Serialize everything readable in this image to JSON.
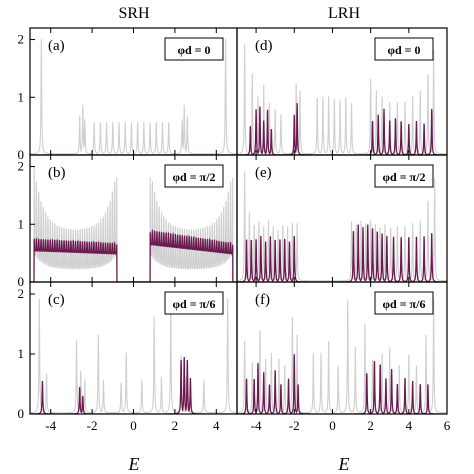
{
  "figure": {
    "column_titles": [
      "SRH",
      "LRH"
    ],
    "xlabel": "E"
  },
  "colors": {
    "light_series": "#cfcfcf",
    "dark_series": "#6b1a4f",
    "frame": "#000000"
  },
  "chart_data": [
    {
      "type": "line",
      "panel": "(a)",
      "column": "SRH",
      "row": 0,
      "annotation": "φd = 0",
      "xlim": [
        -5,
        5
      ],
      "ylim": [
        0,
        2.2
      ],
      "xticks": [
        -4,
        -2,
        0,
        2,
        4
      ],
      "yticks": [
        0,
        1,
        2
      ],
      "light_peaks": [
        [
          -4.45,
          2.0
        ],
        [
          -2.6,
          0.65
        ],
        [
          -2.45,
          0.85
        ],
        [
          -2.35,
          0.6
        ],
        [
          -1.9,
          0.55
        ],
        [
          -1.6,
          0.55
        ],
        [
          -1.3,
          0.55
        ],
        [
          -1.0,
          0.55
        ],
        [
          -0.7,
          0.55
        ],
        [
          -0.4,
          0.55
        ],
        [
          -0.1,
          0.55
        ],
        [
          0.2,
          0.55
        ],
        [
          0.5,
          0.55
        ],
        [
          0.8,
          0.55
        ],
        [
          1.1,
          0.55
        ],
        [
          1.4,
          0.55
        ],
        [
          1.7,
          0.55
        ],
        [
          2.35,
          0.6
        ],
        [
          2.45,
          0.85
        ],
        [
          2.6,
          0.65
        ],
        [
          4.45,
          2.0
        ]
      ],
      "dark_peaks": []
    },
    {
      "type": "line",
      "panel": "(b)",
      "column": "SRH",
      "row": 1,
      "annotation": "φd = π/2",
      "xlim": [
        -5,
        5
      ],
      "ylim": [
        0,
        2.2
      ],
      "xticks": [
        -4,
        -2,
        0,
        2,
        4
      ],
      "yticks": [
        0,
        1,
        2
      ],
      "bands": [
        [
          -4.8,
          -0.8
        ],
        [
          0.8,
          4.8
        ]
      ],
      "light_base": 0.9,
      "light_edge": 2.0,
      "dark_level": 0.75,
      "dark_left_scale": 1.0,
      "dark_right_scale": 1.2
    },
    {
      "type": "line",
      "panel": "(c)",
      "column": "SRH",
      "row": 2,
      "annotation": "φd = π/6",
      "xlim": [
        -5,
        5
      ],
      "ylim": [
        0,
        2.2
      ],
      "xticks": [
        -4,
        -2,
        0,
        2,
        4
      ],
      "yticks": [
        0,
        1,
        2
      ],
      "light_peaks": [
        [
          -4.55,
          1.9
        ],
        [
          -4.2,
          0.65
        ],
        [
          -2.75,
          1.2
        ],
        [
          -2.55,
          0.7
        ],
        [
          -2.35,
          0.55
        ],
        [
          -1.7,
          1.3
        ],
        [
          -1.45,
          0.55
        ],
        [
          -0.6,
          0.5
        ],
        [
          -0.35,
          1.0
        ],
        [
          0.4,
          0.55
        ],
        [
          1.0,
          1.6
        ],
        [
          1.35,
          0.6
        ],
        [
          1.8,
          1.8
        ],
        [
          2.3,
          0.95
        ],
        [
          2.55,
          0.6
        ],
        [
          3.4,
          0.55
        ],
        [
          4.55,
          1.9
        ]
      ],
      "dark_peaks": [
        [
          -4.4,
          0.55
        ],
        [
          -2.6,
          0.45
        ],
        [
          -2.45,
          0.3
        ],
        [
          2.3,
          0.9
        ],
        [
          2.45,
          0.95
        ],
        [
          2.6,
          0.9
        ],
        [
          2.75,
          0.6
        ]
      ]
    },
    {
      "type": "line",
      "panel": "(d)",
      "column": "LRH",
      "row": 0,
      "annotation": "φd = 0",
      "xlim": [
        -5,
        6
      ],
      "ylim": [
        0,
        2.2
      ],
      "xticks": [
        -4,
        -2,
        0,
        2,
        4,
        6
      ],
      "yticks": [],
      "light_peaks": [
        [
          -4.6,
          1.9
        ],
        [
          -4.2,
          1.4
        ],
        [
          -3.9,
          1.0
        ],
        [
          -3.6,
          1.2
        ],
        [
          -3.3,
          0.9
        ],
        [
          -3.0,
          0.8
        ],
        [
          -2.7,
          0.7
        ],
        [
          -1.9,
          1.25
        ],
        [
          -1.7,
          1.1
        ],
        [
          -0.8,
          1.0
        ],
        [
          -0.5,
          1.0
        ],
        [
          -0.2,
          1.0
        ],
        [
          0.1,
          0.95
        ],
        [
          0.4,
          0.95
        ],
        [
          0.7,
          1.0
        ],
        [
          1.0,
          0.9
        ],
        [
          2.0,
          1.3
        ],
        [
          2.3,
          1.1
        ],
        [
          2.6,
          1.0
        ],
        [
          3.0,
          0.9
        ],
        [
          3.4,
          0.9
        ],
        [
          3.8,
          0.9
        ],
        [
          4.2,
          1.0
        ],
        [
          4.6,
          1.1
        ],
        [
          5.0,
          1.4
        ],
        [
          5.3,
          1.8
        ]
      ],
      "dark_peaks": [
        [
          -4.3,
          0.5
        ],
        [
          -4.0,
          0.8
        ],
        [
          -3.8,
          0.85
        ],
        [
          -3.6,
          0.6
        ],
        [
          -3.4,
          0.8
        ],
        [
          -3.2,
          0.45
        ],
        [
          -2.0,
          0.7
        ],
        [
          -1.85,
          0.9
        ],
        [
          2.1,
          0.6
        ],
        [
          2.4,
          0.7
        ],
        [
          2.7,
          0.8
        ],
        [
          3.0,
          0.6
        ],
        [
          3.3,
          0.65
        ],
        [
          3.6,
          0.6
        ],
        [
          4.0,
          0.55
        ],
        [
          4.4,
          0.6
        ],
        [
          4.8,
          0.55
        ],
        [
          5.2,
          0.8
        ]
      ]
    },
    {
      "type": "line",
      "panel": "(e)",
      "column": "LRH",
      "row": 1,
      "annotation": "φd = π/2",
      "xlim": [
        -5,
        6
      ],
      "ylim": [
        0,
        2.2
      ],
      "xticks": [
        -4,
        -2,
        0,
        2,
        4,
        6
      ],
      "yticks": [],
      "light_peaks": [
        [
          -4.6,
          1.9
        ],
        [
          -4.35,
          1.2
        ],
        [
          -4.1,
          1.0
        ],
        [
          -3.85,
          1.05
        ],
        [
          -3.6,
          0.95
        ],
        [
          -3.35,
          1.05
        ],
        [
          -3.1,
          0.95
        ],
        [
          -2.85,
          0.9
        ],
        [
          -2.6,
          1.0
        ],
        [
          -2.35,
          0.95
        ],
        [
          -2.1,
          1.0
        ],
        [
          -1.85,
          1.0
        ],
        [
          1.0,
          1.05
        ],
        [
          1.25,
          1.0
        ],
        [
          1.5,
          1.05
        ],
        [
          1.75,
          1.0
        ],
        [
          2.0,
          1.05
        ],
        [
          2.25,
          1.0
        ],
        [
          2.5,
          0.95
        ],
        [
          2.75,
          1.0
        ],
        [
          3.05,
          0.95
        ],
        [
          3.4,
          0.95
        ],
        [
          3.8,
          0.95
        ],
        [
          4.2,
          1.0
        ],
        [
          4.6,
          1.05
        ],
        [
          5.0,
          1.4
        ],
        [
          5.35,
          1.8
        ]
      ],
      "dark_peaks": [
        [
          -4.5,
          0.75
        ],
        [
          -4.25,
          0.75
        ],
        [
          -4.0,
          0.75
        ],
        [
          -3.75,
          0.8
        ],
        [
          -3.5,
          0.7
        ],
        [
          -3.25,
          0.8
        ],
        [
          -3.0,
          0.75
        ],
        [
          -2.75,
          0.75
        ],
        [
          -2.5,
          0.75
        ],
        [
          -2.25,
          0.7
        ],
        [
          -2.0,
          0.8
        ],
        [
          1.1,
          0.9
        ],
        [
          1.35,
          1.0
        ],
        [
          1.6,
          0.95
        ],
        [
          1.85,
          1.0
        ],
        [
          2.1,
          0.95
        ],
        [
          2.35,
          0.9
        ],
        [
          2.6,
          0.85
        ],
        [
          2.85,
          0.8
        ],
        [
          3.2,
          0.8
        ],
        [
          3.6,
          0.8
        ],
        [
          4.0,
          0.8
        ],
        [
          4.4,
          0.8
        ],
        [
          4.8,
          0.8
        ],
        [
          5.2,
          0.85
        ]
      ]
    },
    {
      "type": "line",
      "panel": "(f)",
      "column": "LRH",
      "row": 2,
      "annotation": "φd = π/6",
      "xlim": [
        -5,
        6
      ],
      "ylim": [
        0,
        2.2
      ],
      "xticks": [
        -4,
        -2,
        0,
        2,
        4,
        6
      ],
      "yticks": [],
      "light_peaks": [
        [
          -4.6,
          1.2
        ],
        [
          -4.2,
          0.85
        ],
        [
          -3.8,
          1.4
        ],
        [
          -3.5,
          0.9
        ],
        [
          -3.2,
          1.0
        ],
        [
          -2.8,
          0.9
        ],
        [
          -2.5,
          0.8
        ],
        [
          -2.1,
          1.6
        ],
        [
          -1.85,
          1.3
        ],
        [
          -1.0,
          1.0
        ],
        [
          -0.6,
          1.0
        ],
        [
          -0.2,
          1.2
        ],
        [
          0.3,
          0.8
        ],
        [
          0.8,
          1.9
        ],
        [
          1.2,
          1.1
        ],
        [
          1.7,
          1.5
        ],
        [
          2.1,
          0.9
        ],
        [
          2.6,
          1.0
        ],
        [
          3.0,
          1.1
        ],
        [
          3.5,
          0.8
        ],
        [
          4.0,
          1.0
        ],
        [
          4.4,
          0.8
        ],
        [
          4.9,
          1.3
        ],
        [
          5.3,
          1.9
        ]
      ],
      "dark_peaks": [
        [
          -4.5,
          0.6
        ],
        [
          -4.1,
          0.6
        ],
        [
          -3.9,
          0.85
        ],
        [
          -3.6,
          0.7
        ],
        [
          -3.3,
          0.5
        ],
        [
          -3.0,
          0.75
        ],
        [
          -2.7,
          0.5
        ],
        [
          -2.3,
          0.6
        ],
        [
          -2.0,
          1.0
        ],
        [
          -1.8,
          0.5
        ],
        [
          1.8,
          0.7
        ],
        [
          2.2,
          0.9
        ],
        [
          2.5,
          0.85
        ],
        [
          2.8,
          0.6
        ],
        [
          3.1,
          0.75
        ],
        [
          3.4,
          0.5
        ],
        [
          3.8,
          0.6
        ],
        [
          4.2,
          0.55
        ],
        [
          4.6,
          0.5
        ],
        [
          5.0,
          0.5
        ]
      ]
    }
  ]
}
